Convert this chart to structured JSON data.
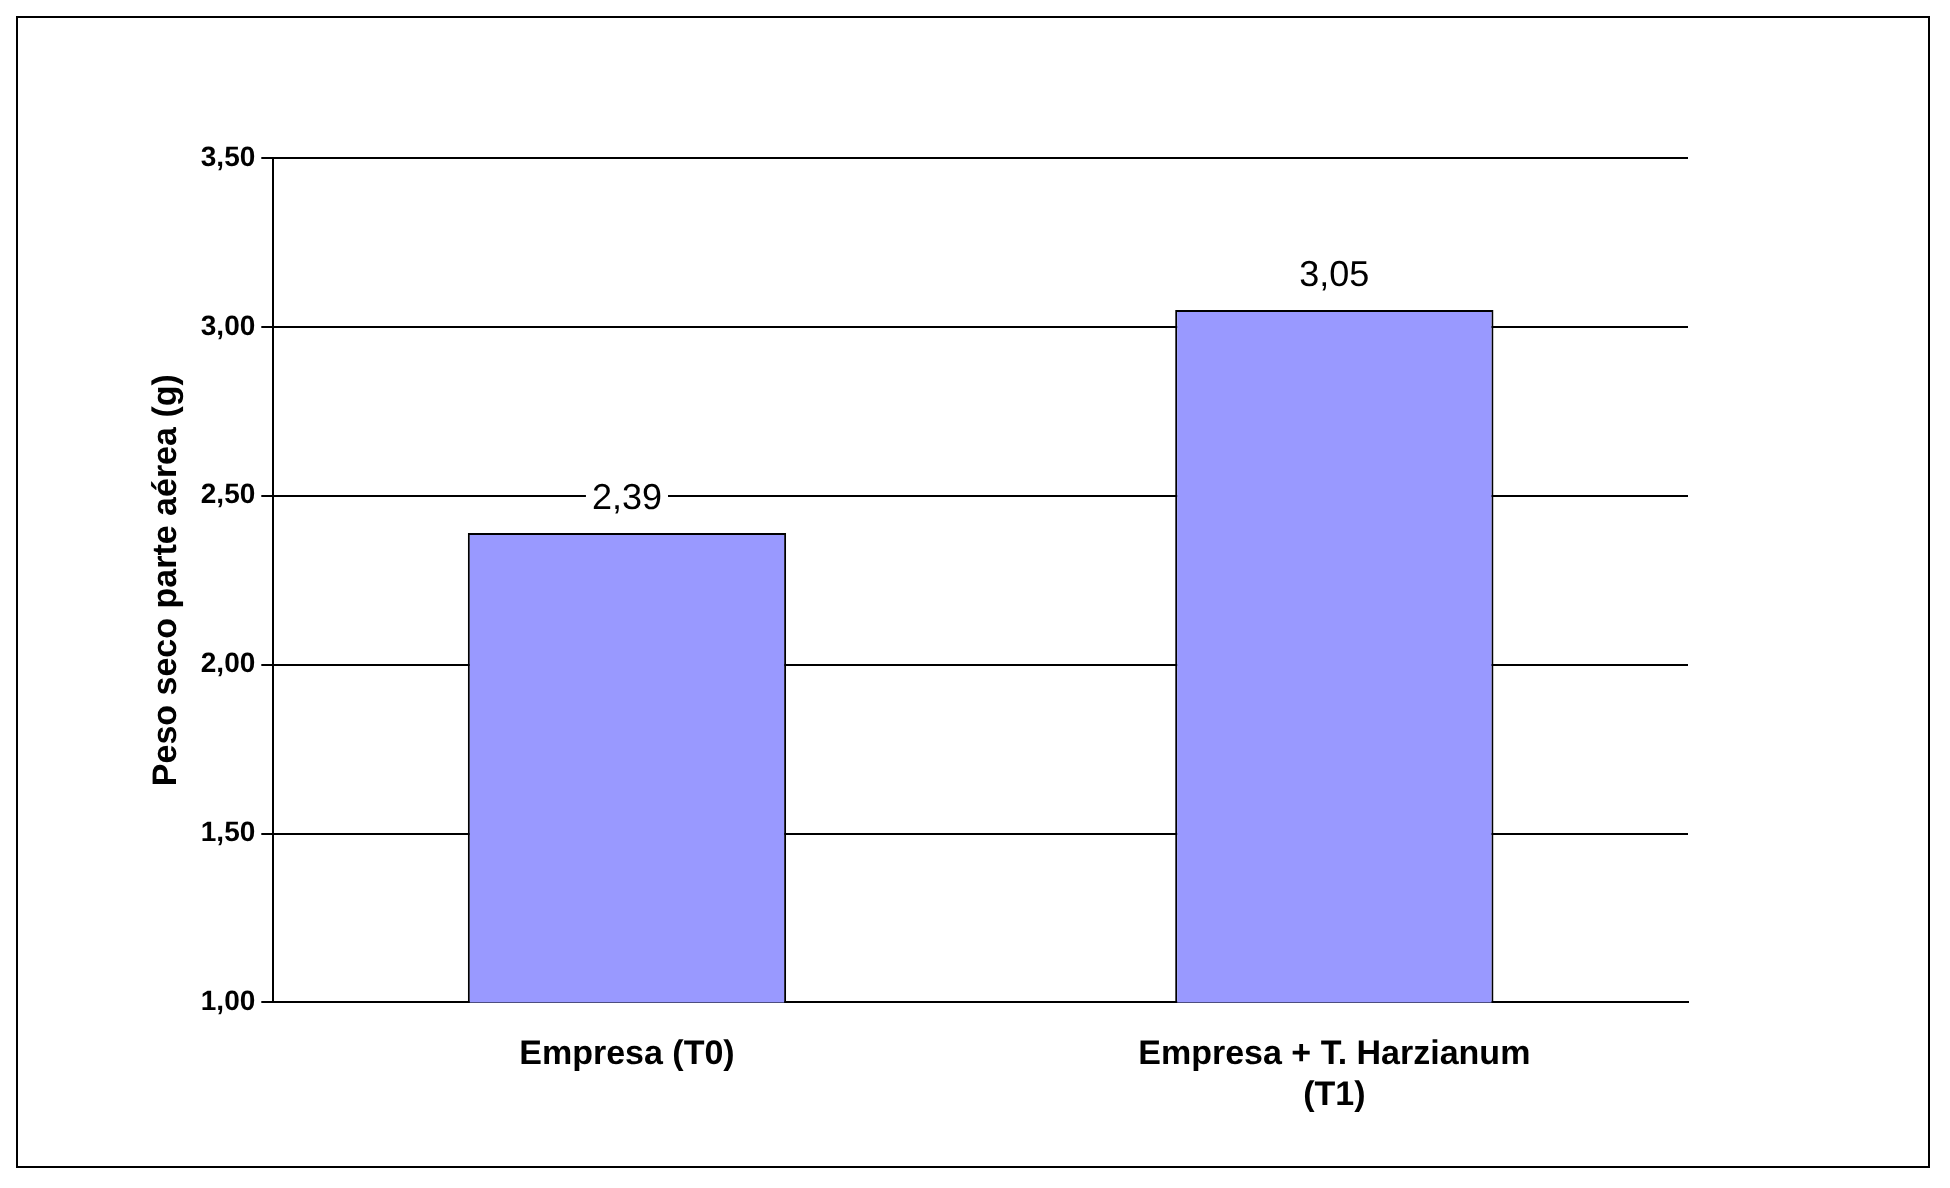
{
  "chart_data": {
    "type": "bar",
    "ylabel": "Peso seco parte aérea (g)",
    "categories": [
      "Empresa (T0)",
      "Empresa + T. Harzianum (T1)"
    ],
    "values": [
      2.39,
      3.05
    ],
    "color": "#9999ff",
    "value_labels": [
      "2,39",
      "3,05"
    ],
    "ylim": [
      1,
      3.5
    ],
    "yticks": [
      {
        "value": 1,
        "label": "1,00"
      },
      {
        "value": 1.5,
        "label": "1,50"
      },
      {
        "value": 2,
        "label": "2,00"
      },
      {
        "value": 2.5,
        "label": "2,50"
      },
      {
        "value": 3,
        "label": "3,00"
      },
      {
        "value": 3.5,
        "label": "3,50"
      }
    ],
    "grid": "y",
    "legend": false
  }
}
